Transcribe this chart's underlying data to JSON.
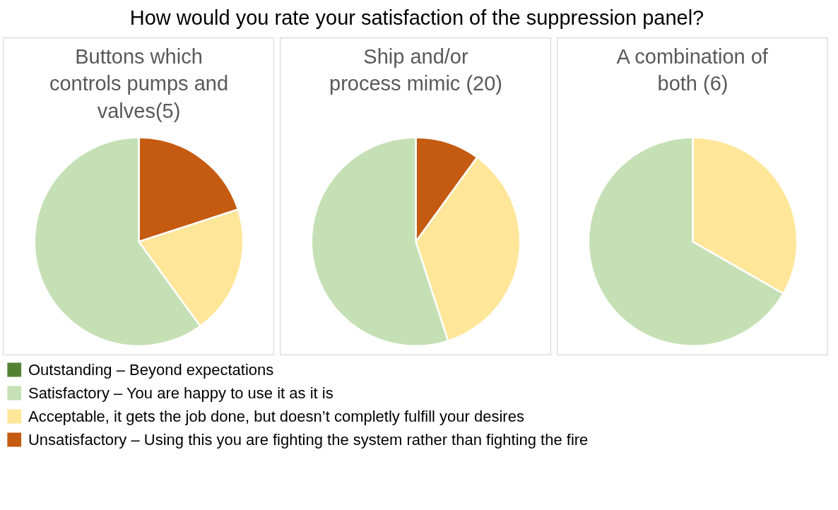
{
  "chart_data": [
    {
      "type": "pie",
      "title": "Buttons which controls pumps and valves(5)",
      "annotations": [
        "How would you rate your satisfaction of the suppression panel?"
      ],
      "legend": "bottom",
      "categories": [
        "Outstanding – Beyond expectations",
        "Satisfactory – You are happy to use it as it is",
        "Acceptable, it gets the job done, but doesn’t completly fulfill your desires",
        "Unsatisfactory – Using this you are fighting the system rather than fighting the fire"
      ],
      "values": [
        0,
        60,
        20,
        20
      ],
      "colors": [
        "#548235",
        "#c5e0b4",
        "#ffe699",
        "#c55a11"
      ]
    },
    {
      "type": "pie",
      "title": "Ship and/or process mimic (20)",
      "values": [
        0,
        55,
        35,
        10
      ],
      "colors": [
        "#548235",
        "#c5e0b4",
        "#ffe699",
        "#c55a11"
      ]
    },
    {
      "type": "pie",
      "title": "A combination of both (6)",
      "values": [
        0,
        66.7,
        33.3,
        0
      ],
      "colors": [
        "#548235",
        "#c5e0b4",
        "#ffe699",
        "#c55a11"
      ]
    }
  ]
}
